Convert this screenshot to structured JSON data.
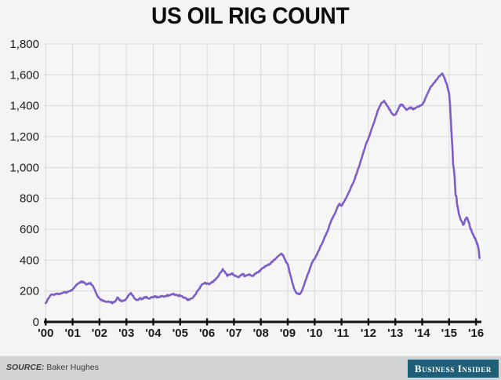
{
  "title": "US OIL RIG COUNT",
  "source": {
    "label": "SOURCE:",
    "name": "Baker Hughes"
  },
  "branding": {
    "logo_text": "Business Insider"
  },
  "colors": {
    "line": "#7d5ec8",
    "axis": "#111111",
    "grid": "#d8d9da",
    "page_bg": "#f3f4f4",
    "plot_bg": "#f6f6f6",
    "tick_label": "#1c1c1c",
    "footer_bg": "#d2d4d4",
    "logo_bg": "#1f5e76",
    "logo_text": "#ffffff"
  },
  "chart_data": {
    "type": "line",
    "title": "US OIL RIG COUNT",
    "xlabel": "",
    "ylabel": "",
    "xlim": [
      2000,
      2016.2
    ],
    "ylim": [
      0,
      1800
    ],
    "grid": true,
    "legend": false,
    "y_ticks": [
      0,
      200,
      400,
      600,
      800,
      1000,
      1200,
      1400,
      1600,
      1800
    ],
    "y_tick_labels": [
      "0",
      "200",
      "400",
      "600",
      "800",
      "1,000",
      "1,200",
      "1,400",
      "1,600",
      "1,800"
    ],
    "x_tick_years": [
      2000,
      2001,
      2002,
      2003,
      2004,
      2005,
      2006,
      2007,
      2008,
      2009,
      2010,
      2011,
      2012,
      2013,
      2014,
      2015,
      2016
    ],
    "x_tick_labels": [
      "'00",
      "'01",
      "'02",
      "'03",
      "'04",
      "'05",
      "'06",
      "'07",
      "'08",
      "'09",
      "'10",
      "'11",
      "'12",
      "'13",
      "'14",
      "'15",
      "'16"
    ],
    "series": [
      {
        "name": "US oil rig count",
        "points": [
          [
            2000.0,
            122
          ],
          [
            2000.083,
            150
          ],
          [
            2000.167,
            170
          ],
          [
            2000.25,
            178
          ],
          [
            2000.333,
            175
          ],
          [
            2000.417,
            182
          ],
          [
            2000.5,
            180
          ],
          [
            2000.583,
            186
          ],
          [
            2000.667,
            192
          ],
          [
            2000.75,
            188
          ],
          [
            2000.833,
            196
          ],
          [
            2000.917,
            200
          ],
          [
            2001.0,
            210
          ],
          [
            2001.083,
            228
          ],
          [
            2001.167,
            242
          ],
          [
            2001.25,
            254
          ],
          [
            2001.333,
            262
          ],
          [
            2001.417,
            256
          ],
          [
            2001.5,
            242
          ],
          [
            2001.583,
            250
          ],
          [
            2001.667,
            252
          ],
          [
            2001.75,
            235
          ],
          [
            2001.833,
            205
          ],
          [
            2001.917,
            170
          ],
          [
            2002.0,
            152
          ],
          [
            2002.083,
            142
          ],
          [
            2002.167,
            135
          ],
          [
            2002.25,
            130
          ],
          [
            2002.333,
            133
          ],
          [
            2002.417,
            127
          ],
          [
            2002.5,
            124
          ],
          [
            2002.583,
            132
          ],
          [
            2002.667,
            158
          ],
          [
            2002.75,
            140
          ],
          [
            2002.833,
            133
          ],
          [
            2002.917,
            138
          ],
          [
            2003.0,
            152
          ],
          [
            2003.083,
            172
          ],
          [
            2003.167,
            187
          ],
          [
            2003.25,
            170
          ],
          [
            2003.333,
            148
          ],
          [
            2003.417,
            144
          ],
          [
            2003.5,
            152
          ],
          [
            2003.583,
            148
          ],
          [
            2003.667,
            156
          ],
          [
            2003.75,
            162
          ],
          [
            2003.833,
            152
          ],
          [
            2003.917,
            158
          ],
          [
            2004.0,
            162
          ],
          [
            2004.083,
            166
          ],
          [
            2004.167,
            158
          ],
          [
            2004.25,
            164
          ],
          [
            2004.333,
            168
          ],
          [
            2004.417,
            165
          ],
          [
            2004.5,
            170
          ],
          [
            2004.583,
            173
          ],
          [
            2004.667,
            178
          ],
          [
            2004.75,
            183
          ],
          [
            2004.833,
            176
          ],
          [
            2004.917,
            171
          ],
          [
            2005.0,
            170
          ],
          [
            2005.083,
            165
          ],
          [
            2005.167,
            158
          ],
          [
            2005.25,
            146
          ],
          [
            2005.333,
            143
          ],
          [
            2005.417,
            152
          ],
          [
            2005.5,
            163
          ],
          [
            2005.583,
            180
          ],
          [
            2005.667,
            205
          ],
          [
            2005.75,
            228
          ],
          [
            2005.833,
            246
          ],
          [
            2005.917,
            254
          ],
          [
            2006.0,
            248
          ],
          [
            2006.083,
            243
          ],
          [
            2006.167,
            254
          ],
          [
            2006.25,
            266
          ],
          [
            2006.333,
            280
          ],
          [
            2006.417,
            296
          ],
          [
            2006.5,
            320
          ],
          [
            2006.583,
            342
          ],
          [
            2006.667,
            324
          ],
          [
            2006.75,
            298
          ],
          [
            2006.833,
            306
          ],
          [
            2006.917,
            314
          ],
          [
            2007.0,
            304
          ],
          [
            2007.083,
            297
          ],
          [
            2007.167,
            290
          ],
          [
            2007.25,
            302
          ],
          [
            2007.333,
            310
          ],
          [
            2007.417,
            296
          ],
          [
            2007.5,
            302
          ],
          [
            2007.583,
            308
          ],
          [
            2007.667,
            298
          ],
          [
            2007.75,
            305
          ],
          [
            2007.833,
            314
          ],
          [
            2007.917,
            322
          ],
          [
            2008.0,
            339
          ],
          [
            2008.083,
            350
          ],
          [
            2008.167,
            358
          ],
          [
            2008.25,
            366
          ],
          [
            2008.333,
            376
          ],
          [
            2008.417,
            388
          ],
          [
            2008.5,
            401
          ],
          [
            2008.583,
            415
          ],
          [
            2008.667,
            429
          ],
          [
            2008.75,
            441
          ],
          [
            2008.833,
            432
          ],
          [
            2008.917,
            395
          ],
          [
            2009.0,
            373
          ],
          [
            2009.083,
            315
          ],
          [
            2009.167,
            256
          ],
          [
            2009.25,
            210
          ],
          [
            2009.333,
            185
          ],
          [
            2009.417,
            179
          ],
          [
            2009.5,
            192
          ],
          [
            2009.583,
            228
          ],
          [
            2009.667,
            270
          ],
          [
            2009.75,
            310
          ],
          [
            2009.833,
            350
          ],
          [
            2009.917,
            388
          ],
          [
            2010.0,
            408
          ],
          [
            2010.083,
            435
          ],
          [
            2010.167,
            465
          ],
          [
            2010.25,
            498
          ],
          [
            2010.333,
            530
          ],
          [
            2010.417,
            562
          ],
          [
            2010.5,
            597
          ],
          [
            2010.583,
            640
          ],
          [
            2010.667,
            672
          ],
          [
            2010.75,
            700
          ],
          [
            2010.833,
            735
          ],
          [
            2010.917,
            765
          ],
          [
            2011.0,
            752
          ],
          [
            2011.083,
            775
          ],
          [
            2011.167,
            800
          ],
          [
            2011.25,
            830
          ],
          [
            2011.333,
            862
          ],
          [
            2011.417,
            895
          ],
          [
            2011.5,
            930
          ],
          [
            2011.583,
            972
          ],
          [
            2011.667,
            1015
          ],
          [
            2011.75,
            1060
          ],
          [
            2011.833,
            1110
          ],
          [
            2011.917,
            1155
          ],
          [
            2012.0,
            1190
          ],
          [
            2012.083,
            1230
          ],
          [
            2012.167,
            1272
          ],
          [
            2012.25,
            1315
          ],
          [
            2012.333,
            1360
          ],
          [
            2012.417,
            1395
          ],
          [
            2012.5,
            1420
          ],
          [
            2012.583,
            1432
          ],
          [
            2012.667,
            1410
          ],
          [
            2012.75,
            1388
          ],
          [
            2012.833,
            1360
          ],
          [
            2012.917,
            1342
          ],
          [
            2013.0,
            1342
          ],
          [
            2013.083,
            1365
          ],
          [
            2013.167,
            1400
          ],
          [
            2013.25,
            1407
          ],
          [
            2013.333,
            1390
          ],
          [
            2013.417,
            1373
          ],
          [
            2013.5,
            1382
          ],
          [
            2013.583,
            1390
          ],
          [
            2013.667,
            1376
          ],
          [
            2013.75,
            1385
          ],
          [
            2013.833,
            1395
          ],
          [
            2013.917,
            1402
          ],
          [
            2014.0,
            1407
          ],
          [
            2014.083,
            1432
          ],
          [
            2014.167,
            1466
          ],
          [
            2014.25,
            1500
          ],
          [
            2014.333,
            1525
          ],
          [
            2014.417,
            1545
          ],
          [
            2014.5,
            1562
          ],
          [
            2014.583,
            1580
          ],
          [
            2014.667,
            1595
          ],
          [
            2014.75,
            1609
          ],
          [
            2014.833,
            1578
          ],
          [
            2014.917,
            1538
          ],
          [
            2015.0,
            1482
          ],
          [
            2015.03,
            1421
          ],
          [
            2015.06,
            1317
          ],
          [
            2015.09,
            1223
          ],
          [
            2015.12,
            1140
          ],
          [
            2015.15,
            1019
          ],
          [
            2015.18,
            986
          ],
          [
            2015.21,
            922
          ],
          [
            2015.24,
            825
          ],
          [
            2015.27,
            813
          ],
          [
            2015.3,
            760
          ],
          [
            2015.33,
            734
          ],
          [
            2015.36,
            703
          ],
          [
            2015.4,
            679
          ],
          [
            2015.44,
            660
          ],
          [
            2015.48,
            646
          ],
          [
            2015.52,
            628
          ],
          [
            2015.56,
            638
          ],
          [
            2015.6,
            664
          ],
          [
            2015.64,
            672
          ],
          [
            2015.67,
            675
          ],
          [
            2015.71,
            652
          ],
          [
            2015.75,
            641
          ],
          [
            2015.79,
            605
          ],
          [
            2015.83,
            594
          ],
          [
            2015.87,
            572
          ],
          [
            2015.9,
            564
          ],
          [
            2015.94,
            545
          ],
          [
            2015.98,
            538
          ],
          [
            2016.02,
            516
          ],
          [
            2016.06,
            498
          ],
          [
            2016.1,
            467
          ],
          [
            2016.13,
            413
          ]
        ]
      }
    ]
  }
}
